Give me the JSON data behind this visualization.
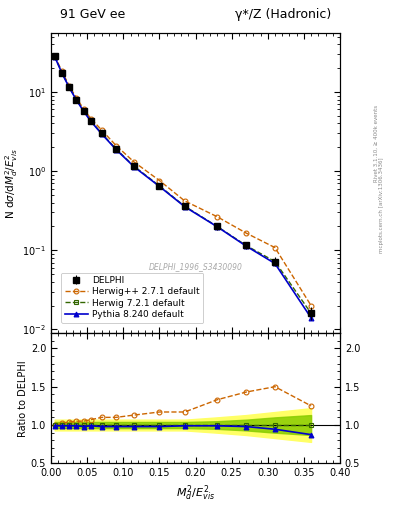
{
  "title_left": "91 GeV ee",
  "title_right": "γ*/Z (Hadronic)",
  "ylabel_main": "N dσ/dM²_d/E²_vis",
  "ylabel_ratio": "Ratio to DELPHI",
  "xlabel": "$M^2_d/E^2_{vis}$",
  "watermark": "DELPHI_1996_S3430090",
  "right_label": "mcplots.cern.ch [arXiv:1306.3436]",
  "right_label2": "Rivet 3.1.10, ≥ 400k events",
  "x_data": [
    0.005,
    0.015,
    0.025,
    0.035,
    0.045,
    0.055,
    0.07,
    0.09,
    0.115,
    0.15,
    0.185,
    0.23,
    0.27,
    0.31,
    0.36
  ],
  "delphi_y": [
    28.0,
    17.5,
    11.5,
    8.0,
    5.8,
    4.3,
    3.0,
    1.9,
    1.15,
    0.65,
    0.36,
    0.2,
    0.115,
    0.072,
    0.016
  ],
  "delphi_err": [
    1.2,
    0.9,
    0.6,
    0.45,
    0.35,
    0.25,
    0.18,
    0.13,
    0.08,
    0.045,
    0.028,
    0.018,
    0.012,
    0.009,
    0.003
  ],
  "herwig_y": [
    28.5,
    18.2,
    12.0,
    8.4,
    6.1,
    4.6,
    3.3,
    2.1,
    1.3,
    0.76,
    0.42,
    0.265,
    0.165,
    0.108,
    0.02
  ],
  "herwig72_y": [
    28.0,
    17.5,
    11.5,
    8.0,
    5.8,
    4.3,
    3.0,
    1.9,
    1.15,
    0.65,
    0.36,
    0.2,
    0.115,
    0.072,
    0.016
  ],
  "pythia_y": [
    27.8,
    17.3,
    11.4,
    7.9,
    5.7,
    4.25,
    2.95,
    1.87,
    1.13,
    0.64,
    0.355,
    0.198,
    0.113,
    0.068,
    0.014
  ],
  "herwig_ratio": [
    1.0,
    1.02,
    1.04,
    1.05,
    1.05,
    1.07,
    1.1,
    1.1,
    1.13,
    1.17,
    1.17,
    1.33,
    1.43,
    1.5,
    1.25
  ],
  "herwig72_ratio": [
    1.0,
    1.0,
    1.0,
    1.0,
    1.0,
    1.0,
    1.0,
    1.0,
    1.0,
    1.0,
    1.0,
    1.0,
    1.0,
    1.0,
    1.0
  ],
  "pythia_ratio": [
    0.99,
    0.99,
    0.99,
    0.99,
    0.98,
    0.99,
    0.98,
    0.98,
    0.98,
    0.98,
    0.99,
    0.99,
    0.98,
    0.945,
    0.875
  ],
  "yellow_band_lo": [
    0.93,
    0.93,
    0.93,
    0.93,
    0.93,
    0.93,
    0.93,
    0.93,
    0.93,
    0.93,
    0.93,
    0.9,
    0.87,
    0.83,
    0.78
  ],
  "yellow_band_hi": [
    1.07,
    1.07,
    1.07,
    1.07,
    1.07,
    1.07,
    1.07,
    1.07,
    1.07,
    1.07,
    1.07,
    1.1,
    1.13,
    1.17,
    1.22
  ],
  "green_band_lo": [
    0.96,
    0.96,
    0.96,
    0.96,
    0.96,
    0.96,
    0.96,
    0.96,
    0.96,
    0.96,
    0.96,
    0.95,
    0.93,
    0.9,
    0.87
  ],
  "green_band_hi": [
    1.04,
    1.04,
    1.04,
    1.04,
    1.04,
    1.04,
    1.04,
    1.04,
    1.04,
    1.04,
    1.04,
    1.05,
    1.07,
    1.1,
    1.13
  ],
  "color_delphi": "#000000",
  "color_herwig": "#cc6600",
  "color_herwig72": "#336600",
  "color_pythia": "#0000cc",
  "color_yellow_band": "#ffff66",
  "color_green_band": "#88cc00",
  "xlim": [
    0.0,
    0.4
  ],
  "ylim_main": [
    0.009,
    55
  ],
  "ylim_ratio": [
    0.5,
    2.2
  ],
  "ratio_yticks": [
    0.5,
    1.0,
    1.5,
    2.0
  ]
}
